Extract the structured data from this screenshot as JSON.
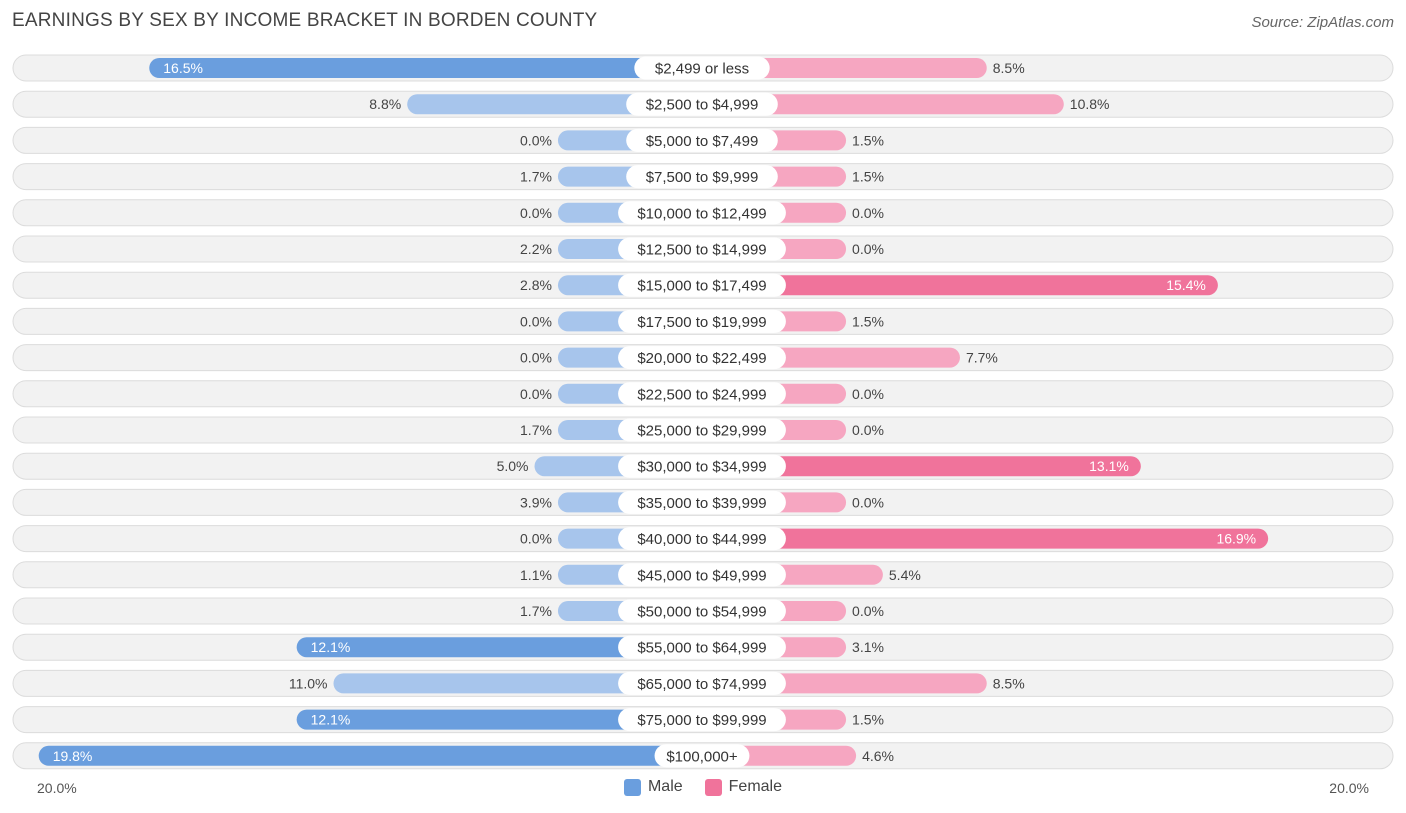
{
  "title": "EARNINGS BY SEX BY INCOME BRACKET IN BORDEN COUNTY",
  "source": "Source: ZipAtlas.com",
  "colors": {
    "male_dark": "#6a9ede",
    "male_light": "#a7c5ec",
    "female_dark": "#f0739b",
    "female_light": "#f6a6c1",
    "row_bg": "#f2f2f2",
    "row_border": "#dcdcdc"
  },
  "axis": {
    "left_label": "20.0%",
    "right_label": "20.0%"
  },
  "legend": {
    "male": "Male",
    "female": "Female"
  },
  "chart_data": {
    "type": "bar",
    "orientation": "horizontal-diverging",
    "title": "EARNINGS BY SEX BY INCOME BRACKET IN BORDEN COUNTY",
    "xlim": [
      -20,
      20
    ],
    "unit": "%",
    "categories": [
      "$2,499 or less",
      "$2,500 to $4,999",
      "$5,000 to $7,499",
      "$7,500 to $9,999",
      "$10,000 to $12,499",
      "$12,500 to $14,999",
      "$15,000 to $17,499",
      "$17,500 to $19,999",
      "$20,000 to $22,499",
      "$22,500 to $24,999",
      "$25,000 to $29,999",
      "$30,000 to $34,999",
      "$35,000 to $39,999",
      "$40,000 to $44,999",
      "$45,000 to $49,999",
      "$50,000 to $54,999",
      "$55,000 to $64,999",
      "$65,000 to $74,999",
      "$75,000 to $99,999",
      "$100,000+"
    ],
    "series": [
      {
        "name": "Male",
        "values": [
          16.5,
          8.8,
          0.0,
          1.7,
          0.0,
          2.2,
          2.8,
          0.0,
          0.0,
          0.0,
          1.7,
          5.0,
          3.9,
          0.0,
          1.1,
          1.7,
          12.1,
          11.0,
          12.1,
          19.8
        ],
        "labels": [
          "16.5%",
          "8.8%",
          "0.0%",
          "1.7%",
          "0.0%",
          "2.2%",
          "2.8%",
          "0.0%",
          "0.0%",
          "0.0%",
          "1.7%",
          "5.0%",
          "3.9%",
          "0.0%",
          "1.1%",
          "1.7%",
          "12.1%",
          "11.0%",
          "12.1%",
          "19.8%"
        ]
      },
      {
        "name": "Female",
        "values": [
          8.5,
          10.8,
          1.5,
          1.5,
          0.0,
          0.0,
          15.4,
          1.5,
          7.7,
          0.0,
          0.0,
          13.1,
          0.0,
          16.9,
          5.4,
          0.0,
          3.1,
          8.5,
          1.5,
          4.6
        ],
        "labels": [
          "8.5%",
          "10.8%",
          "1.5%",
          "1.5%",
          "0.0%",
          "0.0%",
          "15.4%",
          "1.5%",
          "7.7%",
          "0.0%",
          "0.0%",
          "13.1%",
          "0.0%",
          "16.9%",
          "5.4%",
          "0.0%",
          "3.1%",
          "8.5%",
          "1.5%",
          "4.6%"
        ]
      }
    ]
  }
}
